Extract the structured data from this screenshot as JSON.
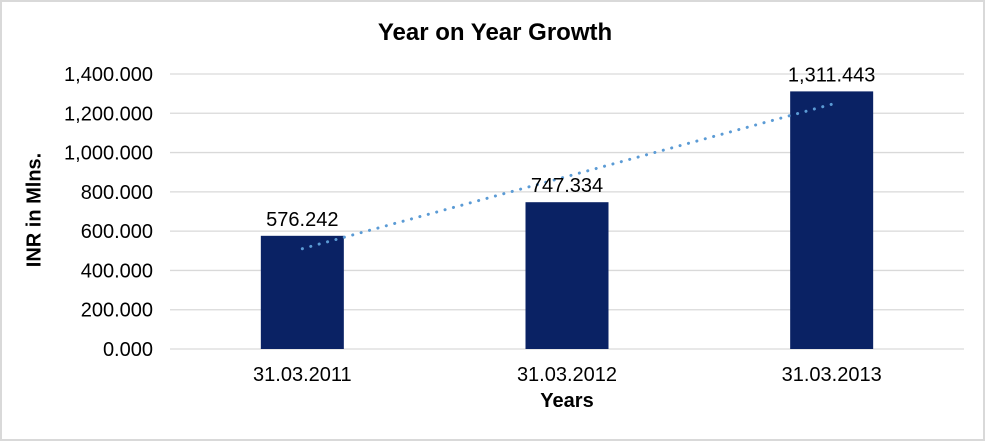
{
  "chart_data": {
    "type": "bar",
    "title": "Year on Year Growth",
    "xlabel": "Years",
    "ylabel": "INR in Mlns.",
    "categories": [
      "31.03.2011",
      "31.03.2012",
      "31.03.2013"
    ],
    "values": [
      576.242,
      747.334,
      1311.443
    ],
    "value_labels": [
      "576.242",
      "747.334",
      "1,311.443"
    ],
    "ylim": [
      0,
      1400
    ],
    "ytick_step": 200,
    "ytick_labels": [
      "0.000",
      "200.000",
      "400.000",
      "600.000",
      "800.000",
      "1,000.000",
      "1,200.000",
      "1,400.000"
    ],
    "grid": true,
    "legend_position": "none",
    "bar_color": "#0a2264",
    "trendline": {
      "type": "linear",
      "style": "dotted",
      "color": "#5b9bd5"
    }
  },
  "colors": {
    "background": "#ffffff",
    "border": "#d9d9d9",
    "gridline": "#d9d9d9",
    "text": "#000000",
    "bar": "#0a2264",
    "trendline": "#5b9bd5"
  }
}
